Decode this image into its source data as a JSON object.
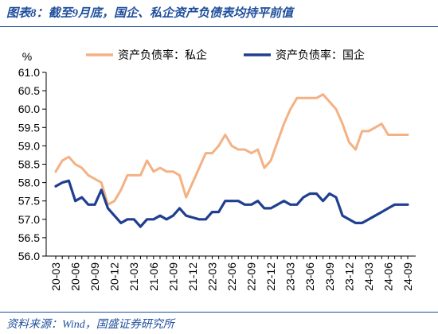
{
  "figure": {
    "title": "图表8：截至9月底，国企、私企资产负债表均持平前值",
    "source": "资料来源：Wind，国盛证券研究所"
  },
  "chart_data": {
    "type": "line",
    "unit": "%",
    "ylim": [
      56.0,
      61.0
    ],
    "yticks": [
      "61.0",
      "60.5",
      "60.0",
      "59.5",
      "59.0",
      "58.5",
      "58.0",
      "57.5",
      "57.0",
      "56.5",
      "56.0"
    ],
    "ytick_values": [
      61.0,
      60.5,
      60.0,
      59.5,
      59.0,
      58.5,
      58.0,
      57.5,
      57.0,
      56.5,
      56.0
    ],
    "x_labels": [
      "20-03",
      "20-06",
      "20-09",
      "20-12",
      "21-03",
      "21-06",
      "21-09",
      "21-12",
      "22-03",
      "22-06",
      "22-09",
      "22-12",
      "23-03",
      "23-06",
      "23-09",
      "23-12",
      "24-03",
      "24-06",
      "24-09"
    ],
    "x": [
      "20-03",
      "20-04",
      "20-05",
      "20-06",
      "20-07",
      "20-08",
      "20-09",
      "20-10",
      "20-11",
      "20-12",
      "21-01",
      "21-02",
      "21-03",
      "21-04",
      "21-05",
      "21-06",
      "21-07",
      "21-08",
      "21-09",
      "21-10",
      "21-11",
      "21-12",
      "22-01",
      "22-02",
      "22-03",
      "22-04",
      "22-05",
      "22-06",
      "22-07",
      "22-08",
      "22-09",
      "22-10",
      "22-11",
      "22-12",
      "23-01",
      "23-02",
      "23-03",
      "23-04",
      "23-05",
      "23-06",
      "23-07",
      "23-08",
      "23-09",
      "23-10",
      "23-11",
      "23-12",
      "24-01",
      "24-02",
      "24-03",
      "24-04",
      "24-05",
      "24-06",
      "24-07",
      "24-08",
      "24-09"
    ],
    "legend_position": "top",
    "grid": false,
    "series": [
      {
        "name": "资产负债率：私企",
        "color": "#f4b183",
        "values": [
          58.3,
          58.6,
          58.7,
          58.5,
          58.4,
          58.2,
          58.1,
          58.0,
          57.4,
          57.5,
          57.8,
          58.2,
          58.2,
          58.2,
          58.6,
          58.3,
          58.4,
          58.3,
          58.3,
          58.2,
          57.6,
          58.0,
          58.4,
          58.8,
          58.8,
          59.0,
          59.3,
          59.0,
          58.9,
          58.9,
          58.8,
          58.9,
          58.4,
          58.6,
          59.1,
          59.6,
          60.0,
          60.3,
          60.3,
          60.3,
          60.3,
          60.4,
          60.2,
          60.0,
          59.6,
          59.1,
          58.9,
          59.4,
          59.4,
          59.5,
          59.6,
          59.3,
          59.3,
          59.3,
          59.3
        ]
      },
      {
        "name": "资产负债率：国企",
        "color": "#1f3f8f",
        "values": [
          57.9,
          58.0,
          58.05,
          57.5,
          57.6,
          57.4,
          57.4,
          57.8,
          57.3,
          57.1,
          56.9,
          57.0,
          57.0,
          56.8,
          57.0,
          57.0,
          57.1,
          57.0,
          57.1,
          57.3,
          57.1,
          57.05,
          57.0,
          57.0,
          57.2,
          57.2,
          57.5,
          57.5,
          57.5,
          57.4,
          57.4,
          57.5,
          57.3,
          57.3,
          57.4,
          57.5,
          57.4,
          57.4,
          57.6,
          57.7,
          57.7,
          57.5,
          57.7,
          57.6,
          57.1,
          57.0,
          56.9,
          56.9,
          57.0,
          57.1,
          57.2,
          57.3,
          57.4,
          57.4,
          57.4
        ]
      }
    ]
  }
}
